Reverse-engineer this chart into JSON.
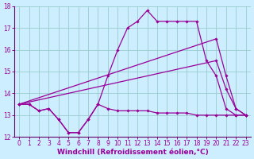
{
  "xlabel": "Windchill (Refroidissement éolien,°C)",
  "bg_color": "#cceeff",
  "grid_color": "#99cccc",
  "line_color": "#990099",
  "spine_color": "#660066",
  "xlim": [
    -0.5,
    23.5
  ],
  "ylim": [
    12,
    18
  ],
  "yticks": [
    12,
    13,
    14,
    15,
    16,
    17,
    18
  ],
  "xticks": [
    0,
    1,
    2,
    3,
    4,
    5,
    6,
    7,
    8,
    9,
    10,
    11,
    12,
    13,
    14,
    15,
    16,
    17,
    18,
    19,
    20,
    21,
    22,
    23
  ],
  "series1_x": [
    0,
    1,
    2,
    3,
    4,
    5,
    6,
    7,
    8,
    9,
    10,
    11,
    12,
    13,
    14,
    15,
    16,
    17,
    18,
    19,
    20,
    21,
    22,
    23
  ],
  "series1_y": [
    13.5,
    13.5,
    13.2,
    13.3,
    12.8,
    12.2,
    12.2,
    12.8,
    13.5,
    13.3,
    13.2,
    13.2,
    13.2,
    13.2,
    13.1,
    13.1,
    13.1,
    13.1,
    13.0,
    13.0,
    13.0,
    13.0,
    13.0,
    13.0
  ],
  "series2_x": [
    0,
    1,
    2,
    3,
    4,
    5,
    6,
    7,
    8,
    9,
    10,
    11,
    12,
    13,
    14,
    15,
    16,
    17,
    18,
    19,
    20,
    21,
    22,
    23
  ],
  "series2_y": [
    13.5,
    13.5,
    13.2,
    13.3,
    12.8,
    12.2,
    12.2,
    12.8,
    13.5,
    14.8,
    16.0,
    17.0,
    17.3,
    17.8,
    17.3,
    17.3,
    17.3,
    17.3,
    17.3,
    15.5,
    14.8,
    13.3,
    13.0,
    13.0
  ],
  "series3_x": [
    0,
    20,
    21,
    22,
    23
  ],
  "series3_y": [
    13.5,
    16.5,
    14.8,
    13.3,
    13.0
  ],
  "series4_x": [
    0,
    20,
    21,
    22,
    23
  ],
  "series4_y": [
    13.5,
    15.5,
    14.2,
    13.3,
    13.0
  ],
  "xlabel_fontsize": 6.5,
  "tick_fontsize": 5.5
}
